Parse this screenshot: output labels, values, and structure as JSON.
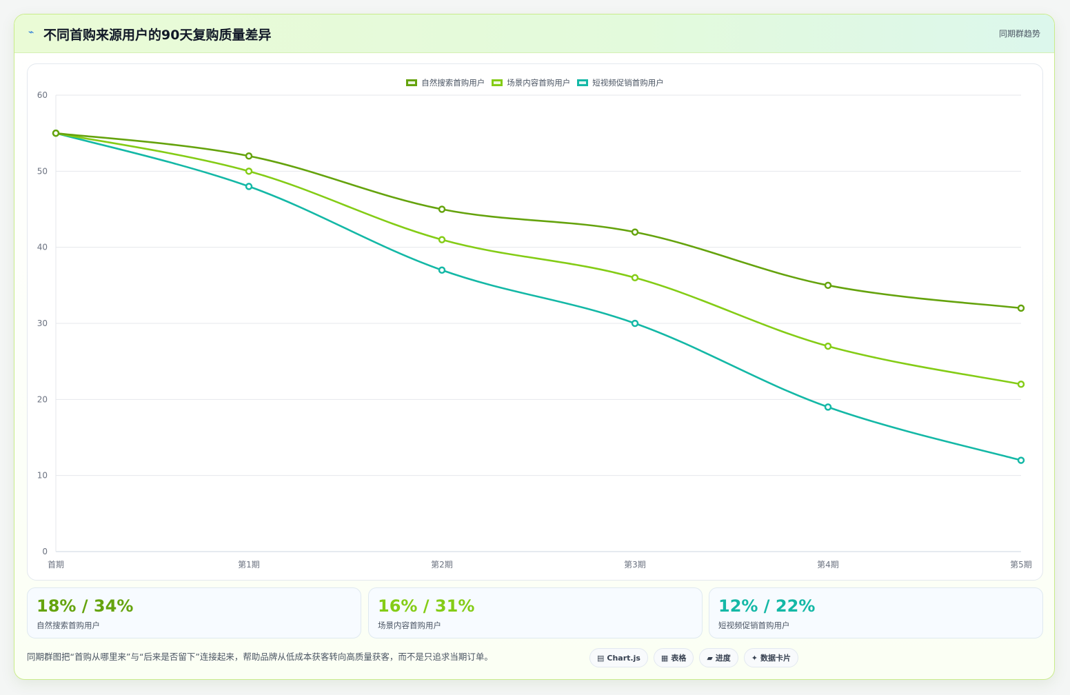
{
  "header": {
    "title": "不同首购来源用户的90天复购质量差异",
    "badge": "同期群趋势"
  },
  "colors": {
    "series": [
      "#65a30d",
      "#84cc16",
      "#14b8a6"
    ]
  },
  "chart_data": {
    "type": "line",
    "x": [
      "首期",
      "第1期",
      "第2期",
      "第3期",
      "第4期",
      "第5期"
    ],
    "ylim": [
      0,
      60
    ],
    "yticks": [
      0,
      10,
      20,
      30,
      40,
      50,
      60
    ],
    "grid": true,
    "legend_position": "top-center",
    "series": [
      {
        "name": "自然搜索首购用户",
        "values": [
          55,
          52,
          45,
          42,
          35,
          32
        ]
      },
      {
        "name": "场景内容首购用户",
        "values": [
          55,
          50,
          41,
          36,
          27,
          22
        ]
      },
      {
        "name": "短视频促销首购用户",
        "values": [
          55,
          48,
          37,
          30,
          19,
          12
        ]
      }
    ]
  },
  "stats": [
    {
      "value": "18% / 34%",
      "label": "自然搜索首购用户"
    },
    {
      "value": "16% / 31%",
      "label": "场景内容首购用户"
    },
    {
      "value": "12% / 22%",
      "label": "短视频促销首购用户"
    }
  ],
  "footer": {
    "text": "同期群图把“首购从哪里来”与“后来是否留下”连接起来，帮助品牌从低成本获客转向高质量获客，而不是只追求当期订单。"
  },
  "chips": [
    {
      "icon": "▤",
      "label": "Chart.js"
    },
    {
      "icon": "▦",
      "label": "表格"
    },
    {
      "icon": "▰",
      "label": "进度"
    },
    {
      "icon": "✦",
      "label": "数据卡片"
    }
  ]
}
